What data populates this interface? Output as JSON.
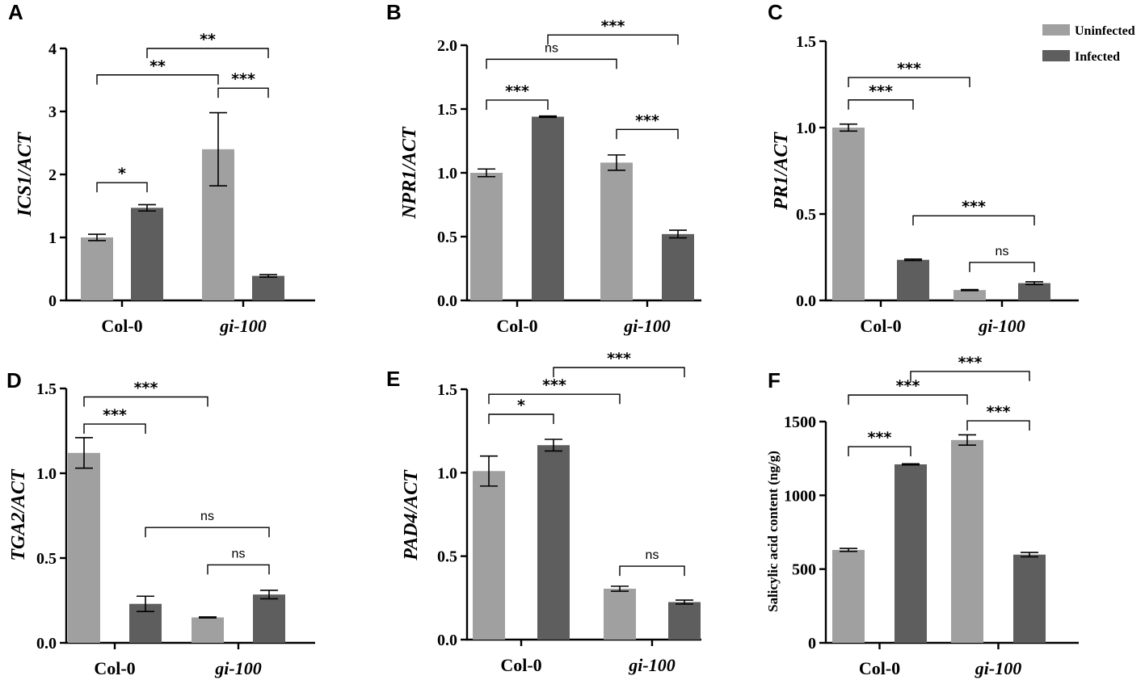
{
  "colors": {
    "uninfected": "#a0a0a0",
    "infected": "#5e5e5e"
  },
  "legend": [
    {
      "label": "Uninfected",
      "color": "#a0a0a0"
    },
    {
      "label": "Infected",
      "color": "#5e5e5e"
    }
  ],
  "chart_data": [
    {
      "panel": "A",
      "type": "bar",
      "ylabel": "ICS1/ACT",
      "ylabel_italic": true,
      "categories": [
        "Col-0",
        "gi-100"
      ],
      "category_italic": [
        false,
        true
      ],
      "ylim": [
        0,
        4
      ],
      "yticks": [
        "0",
        "1",
        "2",
        "3",
        "4"
      ],
      "ytick_values": [
        0,
        1,
        2,
        3,
        4
      ],
      "series": [
        {
          "name": "Uninfected",
          "values": [
            1.0,
            2.4
          ],
          "errors": [
            0.05,
            0.58
          ]
        },
        {
          "name": "Infected",
          "values": [
            1.47,
            0.39
          ],
          "errors": [
            0.05,
            0.02
          ]
        }
      ],
      "brackets": [
        {
          "from": [
            0,
            0
          ],
          "to": [
            0,
            1
          ],
          "label": "*",
          "at": 1.87
        },
        {
          "from": [
            0,
            0
          ],
          "to": [
            1,
            0
          ],
          "label": "**",
          "at": 3.58
        },
        {
          "from": [
            1,
            0
          ],
          "to": [
            1,
            1
          ],
          "label": "***",
          "at": 3.37
        },
        {
          "from": [
            0,
            1
          ],
          "to": [
            1,
            1
          ],
          "label": "**",
          "at": 4.0
        }
      ]
    },
    {
      "panel": "B",
      "type": "bar",
      "ylabel": "NPR1/ACT",
      "ylabel_italic": true,
      "categories": [
        "Col-0",
        "gi-100"
      ],
      "category_italic": [
        false,
        true
      ],
      "ylim": [
        0,
        2.0
      ],
      "yticks": [
        "0.0",
        "0.5",
        "1.0",
        "1.5",
        "2.0"
      ],
      "ytick_values": [
        0,
        0.5,
        1.0,
        1.5,
        2.0
      ],
      "series": [
        {
          "name": "Uninfected",
          "values": [
            1.0,
            1.08
          ],
          "errors": [
            0.03,
            0.06
          ]
        },
        {
          "name": "Infected",
          "values": [
            1.44,
            0.52
          ],
          "errors": [
            0.005,
            0.03
          ]
        }
      ],
      "brackets": [
        {
          "from": [
            0,
            0
          ],
          "to": [
            0,
            1
          ],
          "label": "***",
          "at": 1.57
        },
        {
          "from": [
            0,
            0
          ],
          "to": [
            1,
            0
          ],
          "label": "ns",
          "at": 1.89
        },
        {
          "from": [
            1,
            0
          ],
          "to": [
            1,
            1
          ],
          "label": "***",
          "at": 1.34
        },
        {
          "from": [
            0,
            1
          ],
          "to": [
            1,
            1
          ],
          "label": "***",
          "at": 2.08
        }
      ]
    },
    {
      "panel": "C",
      "type": "bar",
      "ylabel": "PR1/ACT",
      "ylabel_italic": true,
      "categories": [
        "Col-0",
        "gi-100"
      ],
      "category_italic": [
        false,
        true
      ],
      "ylim": [
        0,
        1.5
      ],
      "yticks": [
        "0.0",
        "0.5",
        "1.0",
        "1.5"
      ],
      "ytick_values": [
        0,
        0.5,
        1.0,
        1.5
      ],
      "series": [
        {
          "name": "Uninfected",
          "values": [
            1.0,
            0.06
          ],
          "errors": [
            0.02,
            0.003
          ]
        },
        {
          "name": "Infected",
          "values": [
            0.235,
            0.1
          ],
          "errors": [
            0.004,
            0.008
          ]
        }
      ],
      "brackets": [
        {
          "from": [
            0,
            0
          ],
          "to": [
            0,
            1
          ],
          "label": "***",
          "at": 1.16
        },
        {
          "from": [
            0,
            0
          ],
          "to": [
            1,
            0
          ],
          "label": "***",
          "at": 1.29
        },
        {
          "from": [
            0,
            1
          ],
          "to": [
            1,
            1
          ],
          "label": "***",
          "at": 0.49
        },
        {
          "from": [
            1,
            0
          ],
          "to": [
            1,
            1
          ],
          "label": "ns",
          "at": 0.22
        }
      ]
    },
    {
      "panel": "D",
      "type": "bar",
      "ylabel": "TGA2/ACT",
      "ylabel_italic": true,
      "categories": [
        "Col-0",
        "gi-100"
      ],
      "category_italic": [
        false,
        true
      ],
      "ylim": [
        0,
        1.5
      ],
      "yticks": [
        "0.0",
        "0.5",
        "1.0",
        "1.5"
      ],
      "ytick_values": [
        0,
        0.5,
        1.0,
        1.5
      ],
      "series": [
        {
          "name": "Uninfected",
          "values": [
            1.12,
            0.15
          ],
          "errors": [
            0.09,
            0.003
          ]
        },
        {
          "name": "Infected",
          "values": [
            0.23,
            0.285
          ],
          "errors": [
            0.045,
            0.025
          ]
        }
      ],
      "brackets": [
        {
          "from": [
            0,
            0
          ],
          "to": [
            0,
            1
          ],
          "label": "***",
          "at": 1.29
        },
        {
          "from": [
            0,
            0
          ],
          "to": [
            1,
            0
          ],
          "label": "***",
          "at": 1.45
        },
        {
          "from": [
            0,
            1
          ],
          "to": [
            1,
            1
          ],
          "label": "ns",
          "at": 0.68
        },
        {
          "from": [
            1,
            0
          ],
          "to": [
            1,
            1
          ],
          "label": "ns",
          "at": 0.46
        }
      ]
    },
    {
      "panel": "E",
      "type": "bar",
      "ylabel": "PAD4/ACT",
      "ylabel_italic": true,
      "categories": [
        "Col-0",
        "gi-100"
      ],
      "category_italic": [
        false,
        true
      ],
      "ylim": [
        0,
        1.5
      ],
      "yticks": [
        "0.0",
        "0.5",
        "1.0",
        "1.5"
      ],
      "ytick_values": [
        0,
        0.5,
        1.0,
        1.5
      ],
      "series": [
        {
          "name": "Uninfected",
          "values": [
            1.01,
            0.305
          ],
          "errors": [
            0.09,
            0.015
          ]
        },
        {
          "name": "Infected",
          "values": [
            1.165,
            0.225
          ],
          "errors": [
            0.035,
            0.012
          ]
        }
      ],
      "brackets": [
        {
          "from": [
            0,
            0
          ],
          "to": [
            0,
            1
          ],
          "label": "*",
          "at": 1.35
        },
        {
          "from": [
            0,
            0
          ],
          "to": [
            1,
            0
          ],
          "label": "***",
          "at": 1.47
        },
        {
          "from": [
            0,
            1
          ],
          "to": [
            1,
            1
          ],
          "label": "***",
          "at": 1.63
        },
        {
          "from": [
            1,
            0
          ],
          "to": [
            1,
            1
          ],
          "label": "ns",
          "at": 0.44
        }
      ]
    },
    {
      "panel": "F",
      "type": "bar",
      "ylabel": "Salicylic acid content (ng/g)",
      "ylabel_italic": false,
      "categories": [
        "Col-0",
        "gi-100"
      ],
      "category_italic": [
        false,
        true
      ],
      "ylim": [
        0,
        1500
      ],
      "yticks": [
        "0",
        "500",
        "1000",
        "1500"
      ],
      "ytick_values": [
        0,
        500,
        1000,
        1500
      ],
      "series": [
        {
          "name": "Uninfected",
          "values": [
            630,
            1375
          ],
          "errors": [
            10,
            35
          ]
        },
        {
          "name": "Infected",
          "values": [
            1210,
            598
          ],
          "errors": [
            4,
            15
          ]
        }
      ],
      "brackets": [
        {
          "from": [
            0,
            0
          ],
          "to": [
            0,
            1
          ],
          "label": "***",
          "at": 1330
        },
        {
          "from": [
            0,
            0
          ],
          "to": [
            1,
            0
          ],
          "label": "***",
          "at": 1680
        },
        {
          "from": [
            1,
            0
          ],
          "to": [
            1,
            1
          ],
          "label": "***",
          "at": 1505
        },
        {
          "from": [
            0,
            1
          ],
          "to": [
            1,
            1
          ],
          "label": "***",
          "at": 1840
        }
      ]
    }
  ]
}
